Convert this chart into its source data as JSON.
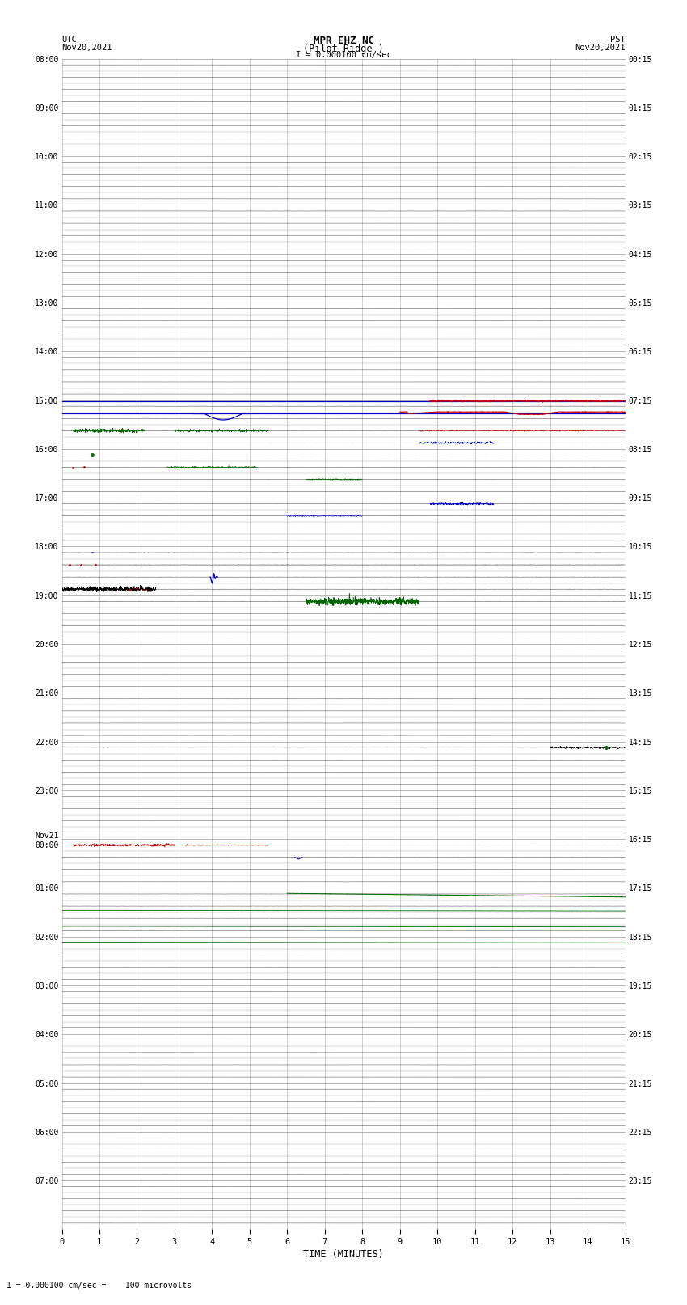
{
  "title_line1": "MPR EHZ NC",
  "title_line2": "(Pilot Ridge )",
  "title_line3": "I = 0.000100 cm/sec",
  "left_top_label1": "UTC",
  "left_top_label2": "Nov20,2021",
  "right_top_label1": "PST",
  "right_top_label2": "Nov20,2021",
  "xlabel": "TIME (MINUTES)",
  "bottom_note": "1 = 0.000100 cm/sec =    100 microvolts",
  "utc_hour_labels": [
    "08:00",
    "09:00",
    "10:00",
    "11:00",
    "12:00",
    "13:00",
    "14:00",
    "15:00",
    "16:00",
    "17:00",
    "18:00",
    "19:00",
    "20:00",
    "21:00",
    "22:00",
    "23:00",
    "Nov21\n00:00",
    "01:00",
    "02:00",
    "03:00",
    "04:00",
    "05:00",
    "06:00",
    "07:00"
  ],
  "pst_hour_labels": [
    "00:15",
    "01:15",
    "02:15",
    "03:15",
    "04:15",
    "05:15",
    "06:15",
    "07:15",
    "08:15",
    "09:15",
    "10:15",
    "11:15",
    "12:15",
    "13:15",
    "14:15",
    "15:15",
    "16:15",
    "17:15",
    "18:15",
    "19:15",
    "20:15",
    "21:15",
    "22:15",
    "23:15"
  ],
  "n_rows": 96,
  "rows_per_hour": 4,
  "x_min": 0,
  "x_max": 15,
  "background_color": "#ffffff",
  "grid_color": "#aaaaaa",
  "figwidth": 8.5,
  "figheight": 16.13
}
